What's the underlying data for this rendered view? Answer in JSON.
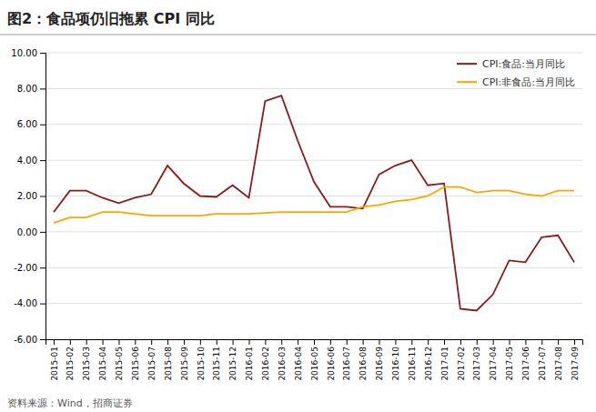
{
  "chart_data": {
    "type": "line",
    "title": "图2：食品项仍旧拖累 CPI 同比",
    "source": "资料来源：Wind，招商证券",
    "categories": [
      "2015-01",
      "2015-02",
      "2015-03",
      "2015-04",
      "2015-05",
      "2015-06",
      "2015-07",
      "2015-08",
      "2015-09",
      "2015-10",
      "2015-11",
      "2015-12",
      "2016-01",
      "2016-02",
      "2016-03",
      "2016-04",
      "2016-05",
      "2016-06",
      "2016-07",
      "2016-08",
      "2016-09",
      "2016-10",
      "2016-11",
      "2016-12",
      "2017-01",
      "2017-02",
      "2017-03",
      "2017-04",
      "2017-05",
      "2017-06",
      "2017-07",
      "2017-08",
      "2017-09"
    ],
    "series": [
      {
        "name": "CPI:食品:当月同比",
        "color": "#8B1A1A",
        "values": [
          1.1,
          2.3,
          2.3,
          1.9,
          1.6,
          1.9,
          2.1,
          3.7,
          2.7,
          2.0,
          1.95,
          2.6,
          1.9,
          7.3,
          7.6,
          5.1,
          2.8,
          1.4,
          1.4,
          1.3,
          3.2,
          3.7,
          4.0,
          2.6,
          2.7,
          -4.3,
          -4.4,
          -3.5,
          -1.6,
          -1.7,
          -0.3,
          -0.2,
          -1.7
        ]
      },
      {
        "name": "CPI:非食品:当月同比",
        "color": "#FFA500",
        "values": [
          0.5,
          0.8,
          0.8,
          1.1,
          1.1,
          1.0,
          0.9,
          0.9,
          0.9,
          0.9,
          1.0,
          1.0,
          1.0,
          1.05,
          1.1,
          1.1,
          1.1,
          1.1,
          1.1,
          1.4,
          1.5,
          1.7,
          1.8,
          2.0,
          2.5,
          2.5,
          2.2,
          2.3,
          2.3,
          2.1,
          2.0,
          2.3,
          2.3
        ]
      }
    ],
    "ylim": [
      -6.0,
      10.0
    ],
    "yticks": [
      {
        "value": -6.0,
        "label": "-6.00"
      },
      {
        "value": -4.0,
        "label": "-4.00"
      },
      {
        "value": -2.0,
        "label": "-2.00"
      },
      {
        "value": 0.0,
        "label": "0.00"
      },
      {
        "value": 2.0,
        "label": "2.00"
      },
      {
        "value": 4.0,
        "label": "4.00"
      },
      {
        "value": 6.0,
        "label": "6.00"
      },
      {
        "value": 8.0,
        "label": "8.00"
      },
      {
        "value": 10.0,
        "label": "10.00"
      }
    ],
    "grid": true,
    "legend": "top-right"
  }
}
